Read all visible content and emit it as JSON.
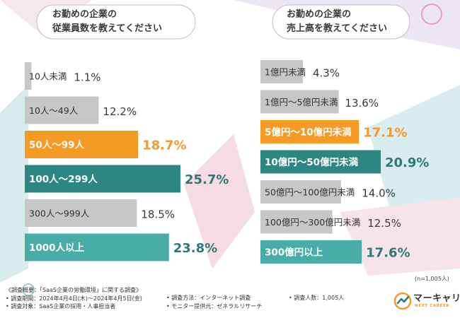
{
  "colors": {
    "gray": "#c7c7c7",
    "orange": "#f59a22",
    "teal": "#2c8782",
    "lightteal": "#48ada7",
    "orange_text": "#f39a2b",
    "teal_text": "#2b7a76",
    "title_text": "#3a3a3a"
  },
  "chart_data": [
    {
      "type": "bar",
      "orientation": "horizontal",
      "title": "お勤めの企業の\n従業員数を教えてください",
      "title_lines": [
        "お勤めの企業の",
        "従業員数を教えてください"
      ],
      "categories": [
        "10人未満",
        "10人〜49人",
        "50人〜99人",
        "100人〜299人",
        "300人〜999人",
        "1000人以上"
      ],
      "values": [
        1.1,
        12.2,
        18.7,
        25.7,
        18.5,
        23.8
      ],
      "value_labels": [
        "1.1%",
        "12.2%",
        "18.7%",
        "25.7%",
        "18.5%",
        "23.8%"
      ],
      "bar_styles": [
        "gray",
        "gray",
        "orange",
        "teal",
        "gray",
        "lightteal"
      ],
      "unit": "%"
    },
    {
      "type": "bar",
      "orientation": "horizontal",
      "title": "お勤めの企業の\n売上高を教えてください",
      "title_lines": [
        "お勤めの企業の",
        "売上高を教えてください"
      ],
      "categories": [
        "1億円未満",
        "1億円〜5億円未満",
        "5億円〜10億円未満",
        "10億円〜50億円未満",
        "50億円〜100億円未満",
        "100億円〜300億円未満",
        "300億円以上"
      ],
      "values": [
        4.3,
        13.6,
        17.1,
        20.9,
        14.0,
        12.5,
        17.6
      ],
      "value_labels": [
        "4.3%",
        "13.6%",
        "17.1%",
        "20.9%",
        "14.0%",
        "12.5%",
        "17.6%"
      ],
      "bar_styles": [
        "gray",
        "gray",
        "orange",
        "teal",
        "gray",
        "gray",
        "lightteal"
      ],
      "unit": "%"
    }
  ],
  "sample_note": "(n=1,005人)",
  "footer": {
    "col1": [
      "《調査概要：「SaaS企業の労働環境」に関する調査》",
      "• 調査期間：2024年4月4日(木)〜2024年4月5日(金)",
      "• 調査対象：SaaS企業の採用・人事担当者"
    ],
    "col2": [
      "• 調査方法：インターネット調査",
      "• モニター提供元：ゼネラルリサーチ"
    ],
    "col3": [
      "• 調査人数：1,005人"
    ]
  },
  "logo": {
    "name": "マーキャリ",
    "sub": "NEXT CAREER"
  }
}
